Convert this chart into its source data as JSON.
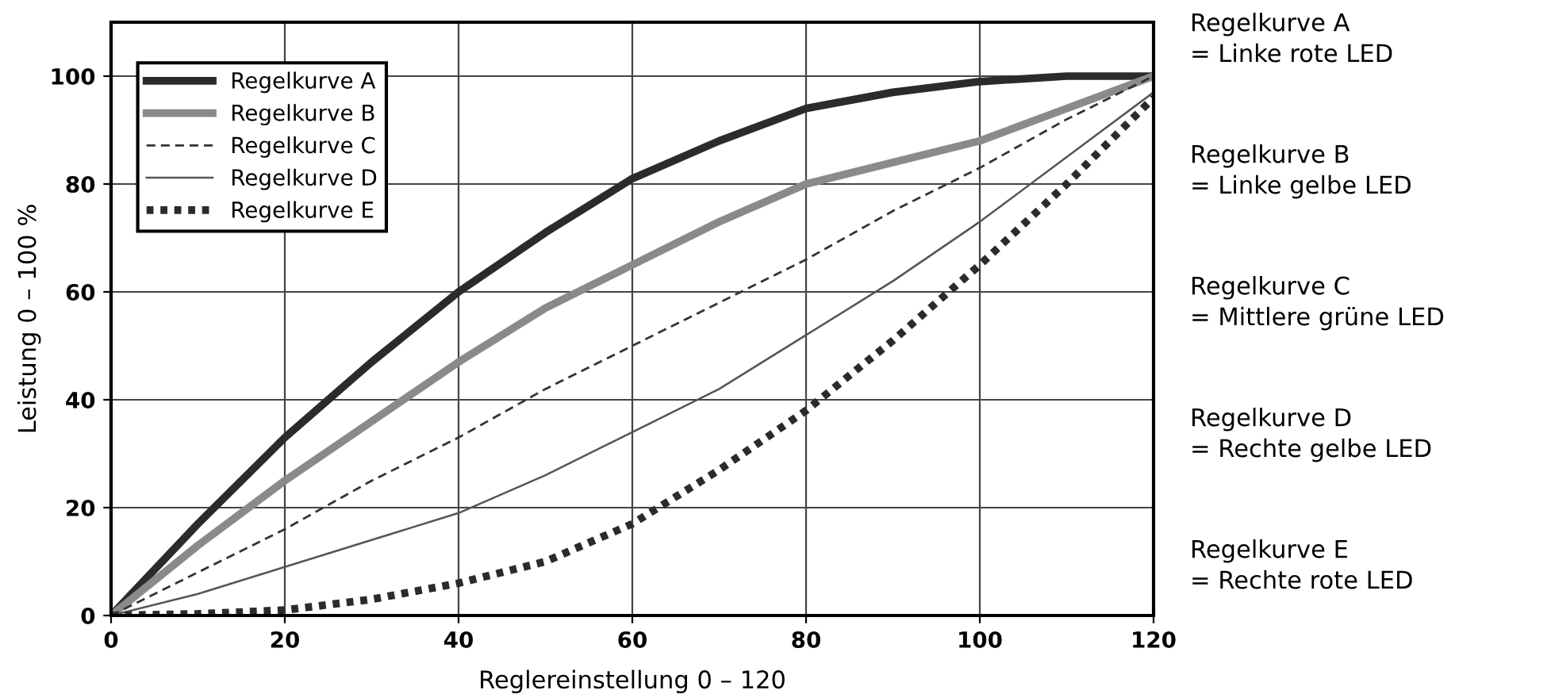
{
  "chart_data": {
    "type": "line",
    "xlabel": "Reglereinstellung 0 – 120",
    "ylabel": "Leistung 0 – 100 %",
    "xlim": [
      0,
      120
    ],
    "ylim": [
      0,
      110
    ],
    "xticks": [
      0,
      20,
      40,
      60,
      80,
      100,
      120
    ],
    "yticks": [
      0,
      20,
      40,
      60,
      80,
      100
    ],
    "grid": true,
    "legend": "top left",
    "marker": "none",
    "x": [
      0,
      10,
      20,
      30,
      40,
      50,
      60,
      70,
      80,
      90,
      100,
      110,
      120
    ],
    "series": [
      {
        "name": "Regelkurve A",
        "color": "#2b2b2b",
        "line_style": "solid",
        "values": [
          0,
          17,
          33,
          47,
          60,
          71,
          81,
          88,
          94,
          97,
          99,
          100,
          100
        ]
      },
      {
        "name": "Regelkurve B",
        "color": "#8a8a8a",
        "line_style": "solid",
        "values": [
          0,
          13,
          25,
          36,
          47,
          57,
          65,
          73,
          80,
          84,
          88,
          94,
          100
        ]
      },
      {
        "name": "Regelkurve C",
        "color": "#333333",
        "line_style": "dashed",
        "values": [
          0,
          8,
          16,
          25,
          33,
          42,
          50,
          58,
          66,
          75,
          83,
          92,
          100
        ]
      },
      {
        "name": "Regelkurve D",
        "color": "#555555",
        "line_style": "solid",
        "values": [
          0,
          4,
          9,
          14,
          19,
          26,
          34,
          42,
          52,
          62,
          73,
          85,
          97
        ]
      },
      {
        "name": "Regelkurve E",
        "color": "#2b2b2b",
        "line_style": "dotted",
        "values": [
          0,
          0.3,
          1,
          3,
          6,
          10,
          17,
          27,
          38,
          51,
          65,
          80,
          96
        ]
      }
    ],
    "annotations": [
      "Regelkurve A\n= Linke rote LED",
      "Regelkurve B\n= Linke gelbe LED",
      "Regelkurve C\n= Mittlere grüne LED",
      "Regelkurve D\n= Rechte gelbe LED",
      "Regelkurve E\n= Rechte rote LED"
    ]
  }
}
